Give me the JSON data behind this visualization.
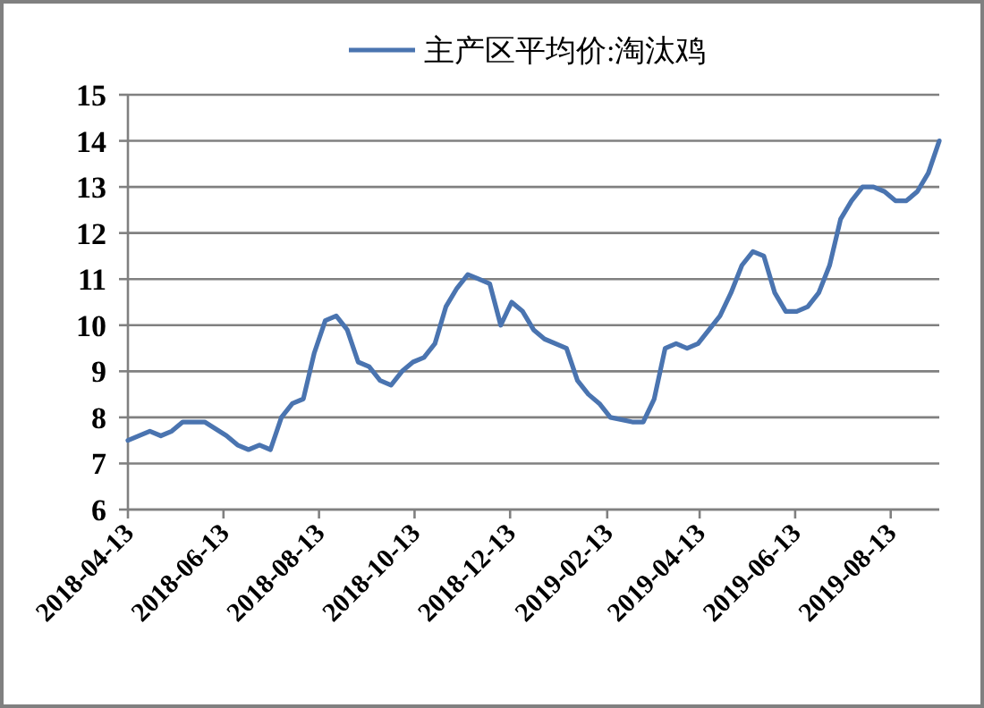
{
  "chart_data": {
    "type": "line",
    "legend": "top",
    "grid": "y",
    "xlim": [
      "2018-04-13",
      "2019-09-13"
    ],
    "xticks": [
      "2018-04-13",
      "2018-06-13",
      "2018-08-13",
      "2018-10-13",
      "2018-12-13",
      "2019-02-13",
      "2019-04-13",
      "2019-06-13",
      "2019-08-13"
    ],
    "ylim": [
      6,
      15
    ],
    "yticks": [
      6,
      7,
      8,
      9,
      10,
      11,
      12,
      13,
      14,
      15
    ],
    "series": [
      {
        "name": "主产区平均价:淘汰鸡",
        "color": "#4a74b0",
        "x": [
          "2018-04-13",
          "2018-04-27",
          "2018-05-04",
          "2018-05-11",
          "2018-05-18",
          "2018-06-01",
          "2018-06-15",
          "2018-06-22",
          "2018-06-29",
          "2018-07-06",
          "2018-07-13",
          "2018-07-20",
          "2018-07-27",
          "2018-08-03",
          "2018-08-10",
          "2018-08-17",
          "2018-08-24",
          "2018-08-31",
          "2018-09-07",
          "2018-09-14",
          "2018-09-21",
          "2018-09-28",
          "2018-10-05",
          "2018-10-12",
          "2018-10-19",
          "2018-10-26",
          "2018-11-02",
          "2018-11-09",
          "2018-11-16",
          "2018-11-23",
          "2018-11-30",
          "2018-12-07",
          "2018-12-14",
          "2018-12-21",
          "2018-12-28",
          "2019-01-04",
          "2019-01-18",
          "2019-01-25",
          "2019-02-01",
          "2019-02-08",
          "2019-02-15",
          "2019-03-01",
          "2019-03-08",
          "2019-03-15",
          "2019-03-22",
          "2019-03-29",
          "2019-04-05",
          "2019-04-12",
          "2019-04-19",
          "2019-04-26",
          "2019-05-03",
          "2019-05-10",
          "2019-05-17",
          "2019-05-24",
          "2019-05-31",
          "2019-06-07",
          "2019-06-14",
          "2019-06-21",
          "2019-06-28",
          "2019-07-05",
          "2019-07-12",
          "2019-07-19",
          "2019-07-26",
          "2019-08-02",
          "2019-08-09",
          "2019-08-16",
          "2019-08-23",
          "2019-08-30",
          "2019-09-06",
          "2019-09-13"
        ],
        "values": [
          7.5,
          7.7,
          7.6,
          7.7,
          7.9,
          7.9,
          7.6,
          7.4,
          7.3,
          7.4,
          7.3,
          8.0,
          8.3,
          8.4,
          9.4,
          10.1,
          10.2,
          9.9,
          9.2,
          9.1,
          8.8,
          8.7,
          9.0,
          9.2,
          9.3,
          9.6,
          10.4,
          10.8,
          11.1,
          11.0,
          10.9,
          10.0,
          10.5,
          10.3,
          9.9,
          9.7,
          9.5,
          8.8,
          8.5,
          8.3,
          8.0,
          7.9,
          7.9,
          8.4,
          9.5,
          9.6,
          9.5,
          9.6,
          9.9,
          10.2,
          10.7,
          11.3,
          11.6,
          11.5,
          10.7,
          10.3,
          10.3,
          10.4,
          10.7,
          11.3,
          12.3,
          12.7,
          13.0,
          13.0,
          12.9,
          12.7,
          12.7,
          12.9,
          13.3,
          14.0
        ]
      }
    ]
  }
}
